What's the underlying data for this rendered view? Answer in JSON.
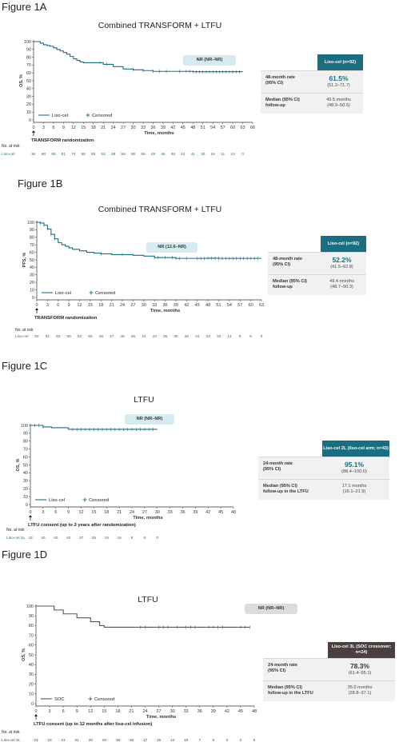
{
  "figures": [
    {
      "id": "1A",
      "label": "Figure 1A",
      "title": "Combined TRANSFORM + LTFU",
      "ylabel": "OS, %",
      "xlabel": "Time, months",
      "anchor_label": "TRANSFORM randomization",
      "legend": {
        "line": "Liso-cel",
        "censored": "Censored"
      },
      "median_badge": "NR (NR–NR)",
      "risk_header": "No. at risk",
      "risk_label": "Liso-cel",
      "table": {
        "arm_header": "Liso-cel\n(n=92)",
        "rows": [
          {
            "label": "48-month rate\n(95% CI)",
            "value": "61.5%",
            "sub": "(51.2–71.7)"
          },
          {
            "label": "Median (95% CI)\nfollow-up",
            "value": "49.5 months",
            "sub": "(48.9–50.6)"
          }
        ]
      }
    },
    {
      "id": "1B",
      "label": "Figure 1B",
      "title": "Combined TRANSFORM + LTFU",
      "ylabel": "PFS, %",
      "xlabel": "Time, months",
      "anchor_label": "TRANSFORM randomization",
      "legend": {
        "line": "Liso-cel",
        "censored": "Censored"
      },
      "median_badge": "NR (12.6–NR)",
      "risk_header": "No. at risk",
      "risk_label": "Liso-cel",
      "table": {
        "arm_header": "Liso-cel\n(n=92)",
        "rows": [
          {
            "label": "48-month rate\n(95% CI)",
            "value": "52.2%",
            "sub": "(41.5–62.8)"
          },
          {
            "label": "Median (95% CI)\nfollow-up",
            "value": "49.4 months",
            "sub": "(48.7–50.3)"
          }
        ]
      }
    },
    {
      "id": "1C",
      "label": "Figure 1C",
      "title": "LTFU",
      "ylabel": "OS, %",
      "xlabel": "Time, months",
      "anchor_label": "LTFU consent (up to 3 years after randomization)",
      "legend": {
        "line": "Liso-cel",
        "censored": "Censored"
      },
      "median_badge": "NR (NR–NR)",
      "risk_header": "No. at risk",
      "risk_label": "Liso-cel 2L",
      "table": {
        "arm_header": "Liso-cel 2L\n(liso-cel arm; n=43)",
        "rows": [
          {
            "label": "24-month rate\n(95% CI)",
            "value": "95.1%",
            "sub": "(88.4–100.0)"
          },
          {
            "label": "Median (95% CI)\nfollow-up in the LTFU",
            "value": "17.1 months",
            "sub": "(16.1–21.9)"
          }
        ]
      }
    },
    {
      "id": "1D",
      "label": "Figure 1D",
      "title": "LTFU",
      "ylabel": "OS, %",
      "xlabel": "Time, months",
      "anchor_label": "LTFU consent (up to 12 months after liso-cel infusion)",
      "legend": {
        "line": "SOC",
        "censored": "Censored"
      },
      "median_badge": "NR (NR–NR)",
      "risk_header": "No. at risk",
      "risk_label": "Liso-cel 3L",
      "table": {
        "arm_header": "Liso-cel 3L\n(SOC crossover; n=24)",
        "rows": [
          {
            "label": "24-month rate\n(95% CI)",
            "value": "78.3%",
            "sub": "(61.4–95.1)"
          },
          {
            "label": "Median (95% CI)\nfollow-up in the LTFU",
            "value": "35.0 months",
            "sub": "(28.8–37.1)"
          }
        ]
      }
    }
  ],
  "chart_data": [
    {
      "type": "line",
      "title": "Combined TRANSFORM + LTFU",
      "xlabel": "Time, months",
      "ylabel": "OS, %",
      "xlim": [
        0,
        66
      ],
      "ylim": [
        0,
        100
      ],
      "x_ticks": [
        0,
        3,
        6,
        9,
        12,
        15,
        18,
        21,
        24,
        27,
        30,
        33,
        36,
        39,
        42,
        45,
        48,
        51,
        54,
        57,
        60,
        63,
        66
      ],
      "y_ticks": [
        0,
        10,
        20,
        30,
        40,
        50,
        60,
        70,
        80,
        90,
        100
      ],
      "color": "#1a6e80",
      "series": [
        {
          "name": "Liso-cel",
          "x": [
            0,
            1,
            2,
            3,
            4,
            5,
            6,
            7,
            8,
            9,
            10,
            11,
            12,
            13,
            14,
            15,
            16,
            18,
            21,
            24,
            27,
            30,
            33,
            36,
            39,
            42,
            45,
            48,
            51,
            54,
            57,
            60,
            63
          ],
          "y": [
            100,
            100,
            98,
            96,
            95,
            94,
            92,
            90,
            88,
            86,
            84,
            81,
            78,
            76,
            74,
            73,
            73,
            73,
            71,
            68,
            65,
            64,
            63,
            62,
            62,
            62,
            62,
            61.5,
            61.5,
            61.5,
            61.5,
            61.5,
            61.5
          ]
        }
      ],
      "censored_x": [
        20,
        22,
        30,
        33,
        36,
        38,
        40,
        44,
        46,
        47,
        48,
        49,
        50,
        51,
        52,
        53,
        54,
        55,
        56,
        57,
        58,
        59,
        60,
        61,
        62
      ],
      "risk_x": [
        0,
        3,
        6,
        9,
        12,
        15,
        18,
        21,
        24,
        27,
        30,
        33,
        36,
        39,
        42,
        45,
        48,
        51,
        54,
        57,
        60,
        63
      ],
      "risk_values": [
        92,
        90,
        85,
        81,
        74,
        66,
        65,
        63,
        58,
        58,
        56,
        55,
        48,
        46,
        46,
        44,
        41,
        30,
        19,
        11,
        10,
        0
      ],
      "text_color": "#1a6e80"
    },
    {
      "type": "line",
      "title": "Combined TRANSFORM + LTFU",
      "xlabel": "Time, months",
      "ylabel": "PFS, %",
      "xlim": [
        0,
        63
      ],
      "ylim": [
        0,
        100
      ],
      "x_ticks": [
        0,
        3,
        6,
        9,
        12,
        15,
        18,
        21,
        24,
        27,
        30,
        33,
        36,
        39,
        42,
        45,
        48,
        51,
        54,
        57,
        60,
        63
      ],
      "y_ticks": [
        0,
        10,
        20,
        30,
        40,
        50,
        60,
        70,
        80,
        90,
        100
      ],
      "color": "#1a6e80",
      "series": [
        {
          "name": "Liso-cel",
          "x": [
            0,
            1,
            2,
            3,
            4,
            5,
            6,
            7,
            8,
            9,
            10,
            12,
            14,
            16,
            18,
            21,
            24,
            27,
            30,
            33,
            36,
            39,
            42,
            45,
            48,
            51,
            54,
            57,
            60,
            63
          ],
          "y": [
            100,
            99,
            96,
            91,
            84,
            78,
            73,
            70,
            68,
            66,
            64,
            62,
            60,
            59,
            58,
            57,
            57,
            56,
            55,
            53,
            53,
            52,
            52,
            52,
            52.2,
            52,
            52,
            52,
            52,
            52
          ]
        }
      ],
      "censored_x": [
        1,
        2,
        3,
        4,
        5,
        18,
        24,
        33,
        34,
        36,
        38,
        39,
        40,
        42,
        45,
        46,
        47,
        48,
        49,
        50,
        51,
        52,
        53,
        54,
        55,
        56,
        57,
        58,
        59,
        60,
        61,
        62
      ],
      "risk_x": [
        0,
        3,
        6,
        9,
        12,
        15,
        18,
        21,
        24,
        27,
        30,
        33,
        36,
        39,
        42,
        45,
        48,
        51,
        54,
        57,
        60,
        63
      ],
      "risk_values": [
        92,
        81,
        63,
        59,
        53,
        50,
        48,
        47,
        46,
        46,
        44,
        43,
        35,
        35,
        35,
        34,
        33,
        15,
        14,
        8,
        6,
        0
      ],
      "text_color": "#1a6e80"
    },
    {
      "type": "line",
      "title": "LTFU",
      "xlabel": "Time, months",
      "ylabel": "OS, %",
      "xlim": [
        0,
        48
      ],
      "ylim": [
        0,
        100
      ],
      "x_ticks": [
        0,
        3,
        6,
        9,
        12,
        15,
        18,
        21,
        24,
        27,
        30,
        33,
        36,
        39,
        42,
        45,
        48
      ],
      "y_ticks": [
        0,
        10,
        20,
        30,
        40,
        50,
        60,
        70,
        80,
        90,
        100
      ],
      "color": "#1a6e80",
      "series": [
        {
          "name": "Liso-cel",
          "x": [
            0,
            2,
            3,
            5,
            8,
            9,
            12,
            15,
            18,
            21,
            24,
            27,
            30
          ],
          "y": [
            100,
            100,
            98,
            97,
            97,
            95,
            95,
            95,
            95,
            95,
            95,
            95,
            95
          ]
        }
      ],
      "censored_x": [
        1,
        2,
        3,
        10,
        11,
        12,
        13,
        14,
        15,
        16,
        17,
        18,
        19,
        20,
        21,
        22,
        23,
        24,
        25,
        26,
        27,
        28,
        29
      ],
      "risk_x": [
        0,
        3,
        6,
        9,
        12,
        15,
        18,
        21,
        24,
        27,
        30
      ],
      "risk_values": [
        43,
        40,
        40,
        40,
        37,
        35,
        19,
        16,
        9,
        6,
        0
      ],
      "text_color": "#1a6e80"
    },
    {
      "type": "line",
      "title": "LTFU",
      "xlabel": "Time, months",
      "ylabel": "OS, %",
      "xlim": [
        0,
        48
      ],
      "ylim": [
        0,
        100
      ],
      "x_ticks": [
        0,
        3,
        6,
        9,
        12,
        15,
        18,
        21,
        24,
        27,
        30,
        33,
        36,
        39,
        42,
        45,
        48
      ],
      "y_ticks": [
        0,
        10,
        20,
        30,
        40,
        50,
        60,
        70,
        80,
        90,
        100
      ],
      "color": "#555555",
      "series": [
        {
          "name": "SOC",
          "x": [
            0,
            3,
            4,
            5,
            6,
            8,
            9,
            11,
            12,
            13,
            14,
            15,
            18,
            21,
            24,
            27,
            30,
            33,
            36,
            39,
            42,
            45,
            47
          ],
          "y": [
            100,
            100,
            96,
            96,
            92,
            92,
            88,
            88,
            84,
            84,
            80,
            78.3,
            78.3,
            78.3,
            78.3,
            78.3,
            78.3,
            78.3,
            78.3,
            78.3,
            78.3,
            78.3,
            78.3
          ]
        }
      ],
      "censored_x": [
        23,
        24,
        27,
        28,
        29,
        31,
        33,
        34,
        35,
        38,
        39,
        40,
        41,
        45,
        46,
        47
      ],
      "risk_x": [
        0,
        3,
        6,
        9,
        12,
        15,
        18,
        21,
        24,
        27,
        30,
        33,
        36,
        39,
        42,
        45,
        48
      ],
      "risk_values": [
        24,
        23,
        21,
        21,
        20,
        18,
        18,
        18,
        17,
        15,
        12,
        10,
        7,
        5,
        3,
        2,
        0
      ],
      "text_color": "#444444"
    }
  ],
  "colors": {
    "teal": "#1a6e80",
    "badge": "#d6ebef",
    "grey_badge": "#dcdcdc",
    "dark_header": "#4a4040"
  }
}
